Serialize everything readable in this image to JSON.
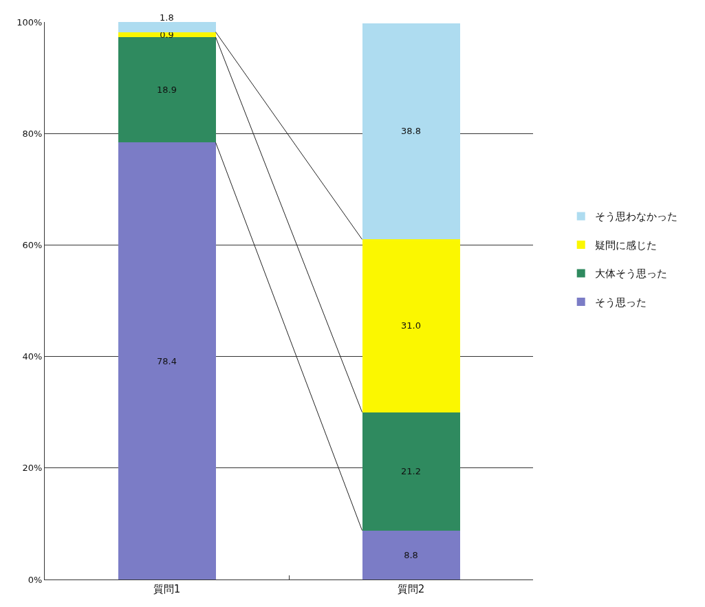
{
  "chart_data": {
    "type": "bar",
    "stacked": true,
    "categories": [
      "質問1",
      "質問2"
    ],
    "series": [
      {
        "name": "そう思った",
        "color": "#7b7cc6",
        "values": [
          78.4,
          8.8
        ],
        "value_labels": [
          "78.4",
          "8.8"
        ]
      },
      {
        "name": "大体そう思った",
        "color": "#2f8a5f",
        "values": [
          18.9,
          21.2
        ],
        "value_labels": [
          "18.9",
          "21.2"
        ]
      },
      {
        "name": "疑問に感じた",
        "color": "#fbf700",
        "values": [
          0.9,
          31.0
        ],
        "value_labels": [
          "0.9",
          "31.0"
        ]
      },
      {
        "name": "そう思わなかった",
        "color": "#aedcf0",
        "values": [
          1.8,
          38.8
        ],
        "value_labels": [
          "1.8",
          "38.8"
        ]
      }
    ],
    "ylim": [
      0,
      100
    ],
    "yticks": [
      {
        "value": 0,
        "label": "0%"
      },
      {
        "value": 20,
        "label": "20%"
      },
      {
        "value": 40,
        "label": "40%"
      },
      {
        "value": 60,
        "label": "60%"
      },
      {
        "value": 80,
        "label": "80%"
      },
      {
        "value": 100,
        "label": "100%"
      }
    ],
    "grid": "y",
    "legend": "right"
  }
}
